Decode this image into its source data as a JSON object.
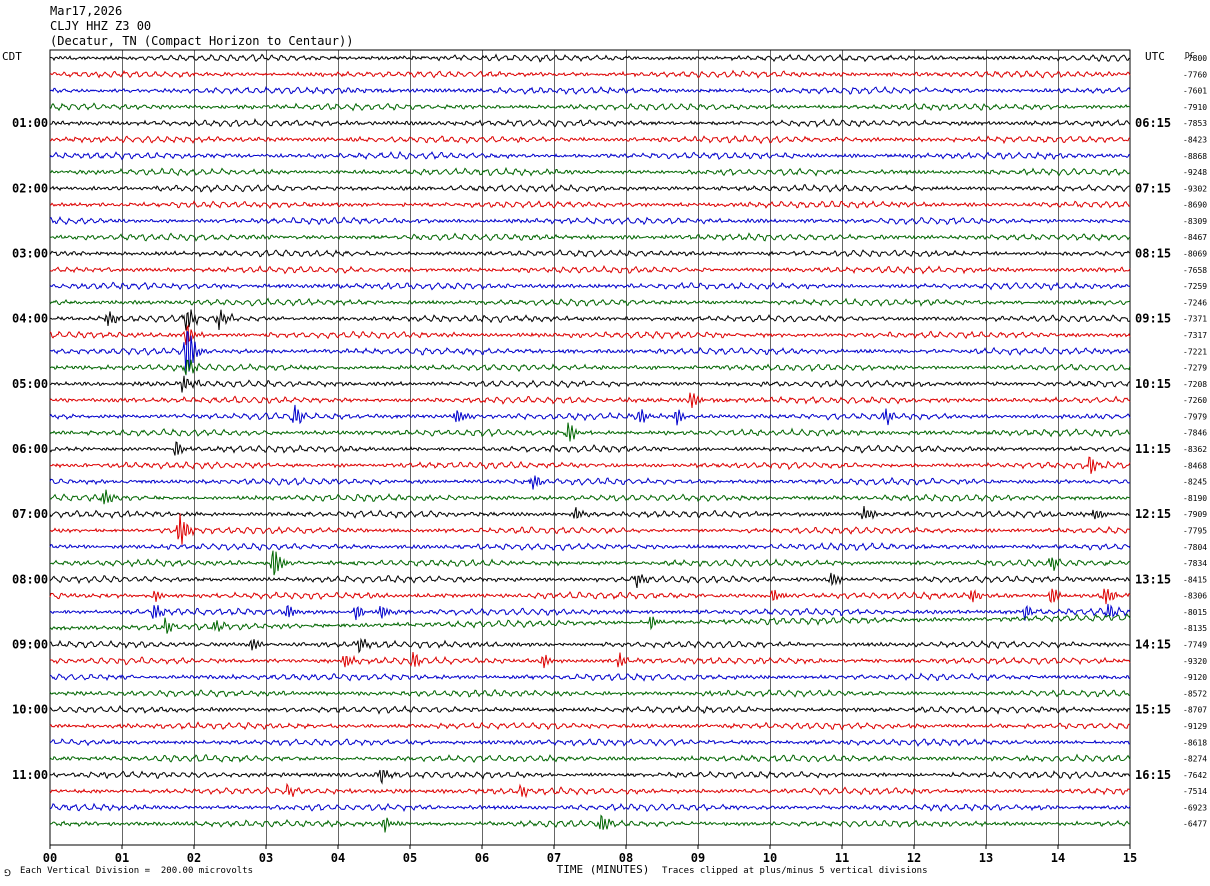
{
  "header": {
    "date": "Mar17,2026",
    "station": "CLJY HHZ Z3 00",
    "location": "(Decatur, TN (Compact Horizon to Centaur))"
  },
  "footer": {
    "division_note": "Each Vertical Division =  200.00 microvolts",
    "clip_note": "Traces clipped at plus/minus 5 vertical divisions",
    "corner_mark": "⅁"
  },
  "chart_data": {
    "type": "line",
    "title": "",
    "xlabel": "TIME (MINUTES)",
    "xlim": [
      0,
      15
    ],
    "x_ticks": [
      "00",
      "01",
      "02",
      "03",
      "04",
      "05",
      "06",
      "07",
      "08",
      "09",
      "10",
      "11",
      "12",
      "13",
      "14",
      "15"
    ],
    "left_axis_label": "CDT",
    "right_axis_label": "UTC",
    "dc_label": "DC",
    "left_time_labels": [
      "01:00",
      "02:00",
      "03:00",
      "04:00",
      "05:00",
      "06:00",
      "07:00",
      "08:00",
      "09:00",
      "10:00",
      "11:00"
    ],
    "right_time_labels": [
      "06:15",
      "07:15",
      "08:15",
      "09:15",
      "10:15",
      "11:15",
      "12:15",
      "13:15",
      "14:15",
      "15:15",
      "16:15"
    ],
    "trace_colors": [
      "#000000",
      "#dd0000",
      "#0000cc",
      "#006600"
    ],
    "dc_offsets": [
      -7800,
      -7760,
      -7601,
      -7910,
      -7853,
      -8423,
      -8868,
      -9248,
      -9302,
      -8690,
      -8309,
      -8467,
      -8069,
      -7658,
      -7259,
      -7246,
      -7371,
      -7317,
      -7221,
      -7279,
      -7208,
      -7260,
      -7979,
      -7846,
      -8362,
      -8468,
      -8245,
      -8190,
      -7909,
      -7795,
      -7804,
      -7834,
      -8415,
      -8306,
      -8015,
      -8135,
      -7749,
      -9320,
      -9120,
      -8572,
      -8707,
      -9129,
      -8618,
      -8274,
      -7642,
      -7514,
      -6923,
      -6477
    ],
    "events": [
      {
        "trace": 16,
        "minute": 0.8,
        "amp": 1.3
      },
      {
        "trace": 16,
        "minute": 1.9,
        "amp": 2.0
      },
      {
        "trace": 16,
        "minute": 2.35,
        "amp": 1.6
      },
      {
        "trace": 18,
        "minute": 1.9,
        "amp": 5.0
      },
      {
        "trace": 17,
        "minute": 1.9,
        "amp": 2.0
      },
      {
        "trace": 19,
        "minute": 1.9,
        "amp": 1.6
      },
      {
        "trace": 20,
        "minute": 1.85,
        "amp": 1.5
      },
      {
        "trace": 21,
        "minute": 8.9,
        "amp": 1.4
      },
      {
        "trace": 22,
        "minute": 3.4,
        "amp": 1.6
      },
      {
        "trace": 22,
        "minute": 5.65,
        "amp": 1.2
      },
      {
        "trace": 22,
        "minute": 8.2,
        "amp": 1.2
      },
      {
        "trace": 22,
        "minute": 8.7,
        "amp": 1.2
      },
      {
        "trace": 22,
        "minute": 11.6,
        "amp": 1.2
      },
      {
        "trace": 23,
        "minute": 7.2,
        "amp": 1.6
      },
      {
        "trace": 24,
        "minute": 1.75,
        "amp": 1.2
      },
      {
        "trace": 25,
        "minute": 14.45,
        "amp": 1.6
      },
      {
        "trace": 26,
        "minute": 6.7,
        "amp": 1.3
      },
      {
        "trace": 27,
        "minute": 0.75,
        "amp": 1.3
      },
      {
        "trace": 28,
        "minute": 7.3,
        "amp": 1.2
      },
      {
        "trace": 28,
        "minute": 11.3,
        "amp": 1.3
      },
      {
        "trace": 28,
        "minute": 14.5,
        "amp": 1.0
      },
      {
        "trace": 29,
        "minute": 1.8,
        "amp": 3.0
      },
      {
        "trace": 31,
        "minute": 3.1,
        "amp": 2.6
      },
      {
        "trace": 31,
        "minute": 13.9,
        "amp": 1.2
      },
      {
        "trace": 32,
        "minute": 8.15,
        "amp": 1.4
      },
      {
        "trace": 32,
        "minute": 10.85,
        "amp": 1.3
      },
      {
        "trace": 33,
        "minute": 1.45,
        "amp": 1.0
      },
      {
        "trace": 33,
        "minute": 10.05,
        "amp": 1.2
      },
      {
        "trace": 33,
        "minute": 12.8,
        "amp": 1.2
      },
      {
        "trace": 33,
        "minute": 13.9,
        "amp": 1.4
      },
      {
        "trace": 33,
        "minute": 14.65,
        "amp": 1.6
      },
      {
        "trace": 34,
        "minute": 1.45,
        "amp": 1.4
      },
      {
        "trace": 34,
        "minute": 3.3,
        "amp": 1.4
      },
      {
        "trace": 34,
        "minute": 4.25,
        "amp": 1.2
      },
      {
        "trace": 34,
        "minute": 4.6,
        "amp": 1.2
      },
      {
        "trace": 34,
        "minute": 13.55,
        "amp": 1.2
      },
      {
        "trace": 34,
        "minute": 14.7,
        "amp": 1.3
      },
      {
        "trace": 35,
        "minute": 1.6,
        "amp": 1.3
      },
      {
        "trace": 35,
        "minute": 2.3,
        "amp": 1.0
      },
      {
        "trace": 35,
        "minute": 8.35,
        "amp": 1.2
      },
      {
        "trace": 36,
        "minute": 4.3,
        "amp": 1.3
      },
      {
        "trace": 36,
        "minute": 2.8,
        "amp": 1.0
      },
      {
        "trace": 37,
        "minute": 4.1,
        "amp": 1.3
      },
      {
        "trace": 37,
        "minute": 5.05,
        "amp": 1.2
      },
      {
        "trace": 37,
        "minute": 6.85,
        "amp": 1.2
      },
      {
        "trace": 37,
        "minute": 7.9,
        "amp": 1.2
      },
      {
        "trace": 44,
        "minute": 4.6,
        "amp": 1.3
      },
      {
        "trace": 45,
        "minute": 3.3,
        "amp": 1.0
      },
      {
        "trace": 45,
        "minute": 6.55,
        "amp": 1.0
      },
      {
        "trace": 47,
        "minute": 4.65,
        "amp": 1.3
      },
      {
        "trace": 47,
        "minute": 7.65,
        "amp": 1.6
      }
    ]
  }
}
